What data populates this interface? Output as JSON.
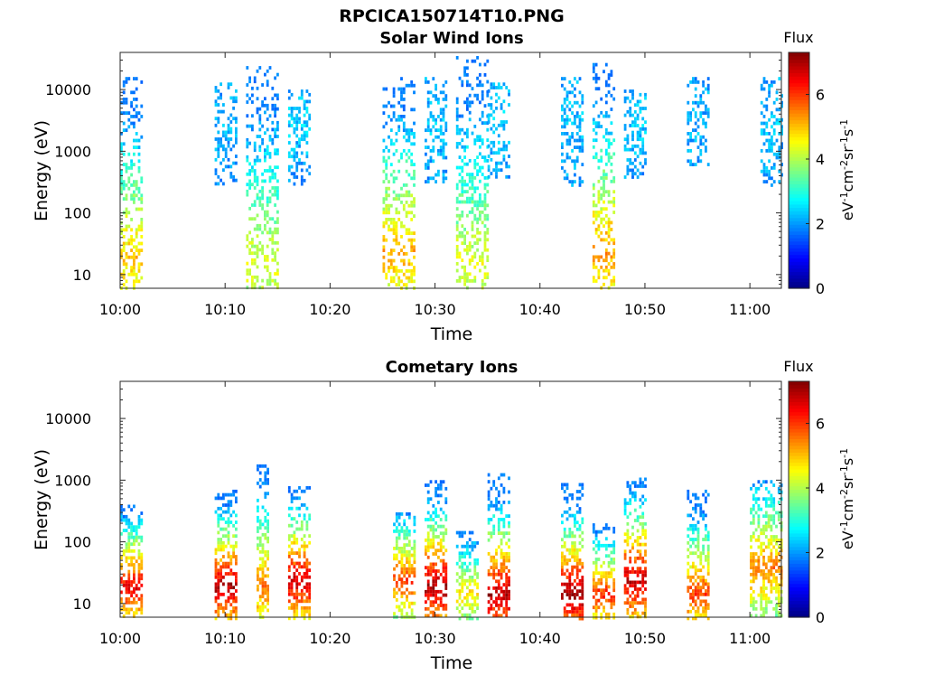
{
  "figure": {
    "title": "RPCICA150714T10.PNG"
  },
  "chart_data": [
    {
      "type": "heatmap",
      "title": "Solar Wind Ions",
      "xlabel": "Time",
      "ylabel": "Energy (eV)",
      "x_ticks": [
        "10:00",
        "10:10",
        "10:20",
        "10:30",
        "10:40",
        "10:50",
        "11:00"
      ],
      "x_range": [
        "10:00",
        "11:03"
      ],
      "y_scale": "log",
      "y_ticks": [
        10,
        100,
        1000,
        10000
      ],
      "y_tick_labels": [
        "10",
        "100",
        "1000",
        "10000"
      ],
      "y_range": [
        6,
        40000
      ],
      "colorbar": {
        "title": "Flux",
        "label": "eV-1cm-2sr-1s-1",
        "range": [
          0,
          7.3
        ],
        "ticks": [
          0,
          2,
          4,
          6
        ],
        "colormap": "jet"
      },
      "bursts": [
        {
          "start": "10:00",
          "end": "10:02",
          "emin": 6,
          "emax": 16000,
          "peak_energy": 20,
          "peak_flux": 5.0
        },
        {
          "start": "10:09",
          "end": "10:11",
          "emin": 300,
          "emax": 13000,
          "peak_energy": 3000,
          "peak_flux": 2.2
        },
        {
          "start": "10:12",
          "end": "10:15",
          "emin": 6,
          "emax": 24000,
          "peak_energy": 15,
          "peak_flux": 4.4
        },
        {
          "start": "10:16",
          "end": "10:18",
          "emin": 300,
          "emax": 10000,
          "peak_energy": 3000,
          "peak_flux": 2.4
        },
        {
          "start": "10:25",
          "end": "10:28",
          "emin": 6,
          "emax": 16000,
          "peak_energy": 25,
          "peak_flux": 5.2
        },
        {
          "start": "10:29",
          "end": "10:31",
          "emin": 300,
          "emax": 16000,
          "peak_energy": 3000,
          "peak_flux": 2.3
        },
        {
          "start": "10:32",
          "end": "10:35",
          "emin": 6,
          "emax": 35000,
          "peak_energy": 15,
          "peak_flux": 4.4
        },
        {
          "start": "10:35",
          "end": "10:37",
          "emin": 400,
          "emax": 13000,
          "peak_energy": 3000,
          "peak_flux": 2.4
        },
        {
          "start": "10:42",
          "end": "10:44",
          "emin": 300,
          "emax": 16000,
          "peak_energy": 3000,
          "peak_flux": 2.3
        },
        {
          "start": "10:45",
          "end": "10:47",
          "emin": 6,
          "emax": 27000,
          "peak_energy": 25,
          "peak_flux": 5.3
        },
        {
          "start": "10:48",
          "end": "10:50",
          "emin": 400,
          "emax": 10000,
          "peak_energy": 3000,
          "peak_flux": 2.4
        },
        {
          "start": "10:54",
          "end": "10:56",
          "emin": 600,
          "emax": 16000,
          "peak_energy": 3000,
          "peak_flux": 2.2
        },
        {
          "start": "11:01",
          "end": "11:03",
          "emin": 300,
          "emax": 16000,
          "peak_energy": 3000,
          "peak_flux": 2.3
        }
      ]
    },
    {
      "type": "heatmap",
      "title": "Cometary Ions",
      "xlabel": "Time",
      "ylabel": "Energy (eV)",
      "x_ticks": [
        "10:00",
        "10:10",
        "10:20",
        "10:30",
        "10:40",
        "10:50",
        "11:00"
      ],
      "x_range": [
        "10:00",
        "11:03"
      ],
      "y_scale": "log",
      "y_ticks": [
        10,
        100,
        1000,
        10000
      ],
      "y_tick_labels": [
        "10",
        "100",
        "1000",
        "10000"
      ],
      "y_range": [
        6,
        40000
      ],
      "colorbar": {
        "title": "Flux",
        "label": "eV-1cm-2sr-1s-1",
        "range": [
          0,
          7.3
        ],
        "ticks": [
          0,
          2,
          4,
          6
        ],
        "colormap": "jet"
      },
      "bursts": [
        {
          "start": "10:00",
          "end": "10:02",
          "emin": 6,
          "emax": 400,
          "peak_energy": 20,
          "peak_flux": 6.6
        },
        {
          "start": "10:09",
          "end": "10:11",
          "emin": 6,
          "emax": 700,
          "peak_energy": 20,
          "peak_flux": 7.0
        },
        {
          "start": "10:13",
          "end": "10:14",
          "emin": 6,
          "emax": 1800,
          "peak_energy": 20,
          "peak_flux": 5.5
        },
        {
          "start": "10:16",
          "end": "10:18",
          "emin": 6,
          "emax": 800,
          "peak_energy": 25,
          "peak_flux": 6.8
        },
        {
          "start": "10:26",
          "end": "10:28",
          "emin": 6,
          "emax": 300,
          "peak_energy": 25,
          "peak_flux": 6.0
        },
        {
          "start": "10:29",
          "end": "10:31",
          "emin": 6,
          "emax": 1000,
          "peak_energy": 20,
          "peak_flux": 7.1
        },
        {
          "start": "10:32",
          "end": "10:34",
          "emin": 6,
          "emax": 150,
          "peak_energy": 15,
          "peak_flux": 4.8
        },
        {
          "start": "10:35",
          "end": "10:37",
          "emin": 6,
          "emax": 1300,
          "peak_energy": 15,
          "peak_flux": 7.0
        },
        {
          "start": "10:42",
          "end": "10:44",
          "emin": 6,
          "emax": 900,
          "peak_energy": 15,
          "peak_flux": 7.2
        },
        {
          "start": "10:45",
          "end": "10:47",
          "emin": 6,
          "emax": 200,
          "peak_energy": 15,
          "peak_flux": 6.2
        },
        {
          "start": "10:48",
          "end": "10:50",
          "emin": 6,
          "emax": 1100,
          "peak_energy": 25,
          "peak_flux": 6.9
        },
        {
          "start": "10:54",
          "end": "10:56",
          "emin": 6,
          "emax": 700,
          "peak_energy": 15,
          "peak_flux": 6.0
        },
        {
          "start": "11:00",
          "end": "11:03",
          "emin": 6,
          "emax": 1000,
          "peak_energy": 40,
          "peak_flux": 5.5
        }
      ]
    }
  ]
}
